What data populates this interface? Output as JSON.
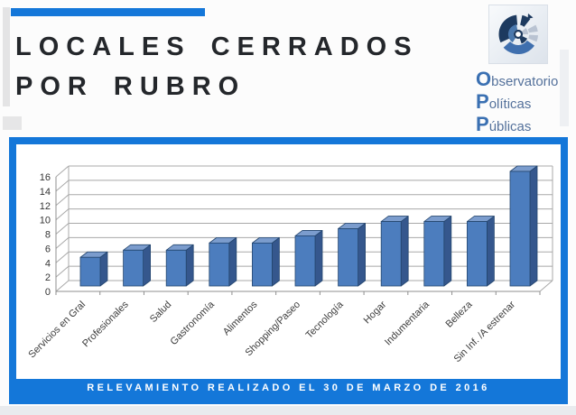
{
  "accent_blue": "#1477d9",
  "header": {
    "title_line1": "LOCALES CERRADOS",
    "title_line2": "POR RUBRO"
  },
  "logo": {
    "icon": "opp-circular-segments-logo",
    "lines": [
      {
        "initial": "O",
        "rest": "bservatorio"
      },
      {
        "initial": "P",
        "rest": "olíticas"
      },
      {
        "initial": "P",
        "rest": "úblicas"
      }
    ],
    "initial_color": "#3a70b2",
    "text_color": "#54719b"
  },
  "chart_data": {
    "type": "bar",
    "style": "3d",
    "title": "",
    "xlabel": "",
    "ylabel": "",
    "categories": [
      "Servicios en Gral",
      "Profesionales",
      "Salud",
      "Gastronomía",
      "Alimentos",
      "Shopping/Paseo",
      "Tecnología",
      "Hogar",
      "Indumentaria",
      "Belleza",
      "Sin Inf. /A estrenar"
    ],
    "values": [
      4,
      5,
      5,
      6,
      6,
      7,
      8,
      9,
      9,
      9,
      16
    ],
    "ylim": [
      0,
      16
    ],
    "yticks": [
      0,
      2,
      4,
      6,
      8,
      10,
      12,
      14,
      16
    ],
    "grid": true,
    "legend": "none",
    "bar_front_color": "#4c7dbe",
    "bar_side_color": "#35578d",
    "bar_top_color": "#7b9ccd",
    "bar_outline_color": "#24466f",
    "grid_color": "#a8a8a8",
    "axis_color": "#8f8f8f",
    "label_color": "#3c3c3c",
    "plot_bg": "#ffffff"
  },
  "banner": {
    "text": "RELEVAMIENTO REALIZADO EL 30 DE MARZO DE 2016"
  }
}
